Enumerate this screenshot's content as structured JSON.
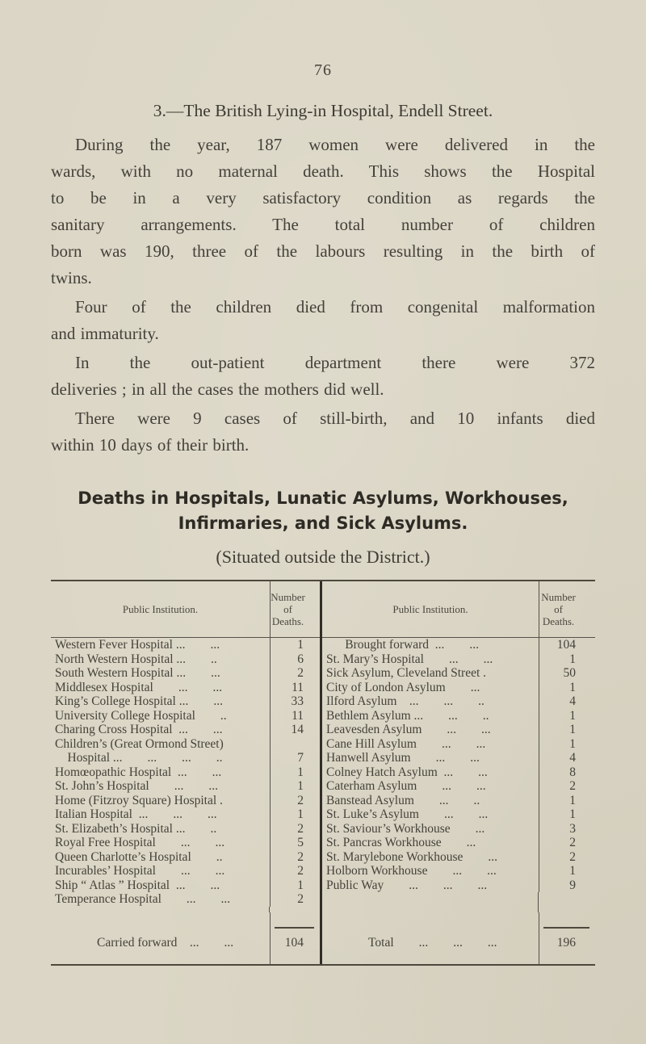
{
  "theme": {
    "paper": "#dbd6c5",
    "ink": "#413e36",
    "rule": "#4c483c",
    "divider": "#312e27"
  },
  "doc": {
    "page_number": "76",
    "section_heading": "3.—The British Lying-in Hospital, Endell Street.",
    "paragraphs": [
      [
        "During the year, 187 women were delivered in the",
        "wards, with no maternal death.  This shows the Hospital",
        "to be in a very satisfactory condition as regards the",
        "sanitary arrangements.  The total number of children",
        "born was 190, three of the labours resulting in the birth of",
        "twins."
      ],
      [
        "Four of the children died from congenital malformation",
        "and immaturity."
      ],
      [
        "In the out-patient department there were 372",
        "deliveries ; in all the cases the mothers did well."
      ],
      [
        "There were 9 cases of still-birth, and 10 infants died",
        "within 10 days of their birth."
      ]
    ],
    "deaths_heading": [
      "Deaths in Hospitals, Lunatic Asylums, Workhouses,",
      "Infirmaries, and Sick Asylums."
    ],
    "subtitle": "(Situated outside the District.)"
  },
  "table": {
    "institution_header": "Public Institution.",
    "deaths_header": "Number of Deaths.",
    "left_rows": [
      {
        "name": "Western Fever Hospital ...        ...",
        "value": "1"
      },
      {
        "name": "North Western Hospital ...        ..",
        "value": "6"
      },
      {
        "name": "South Western Hospital ...        ...",
        "value": "2"
      },
      {
        "name": "Middlesex Hospital        ...        ...",
        "value": "11"
      },
      {
        "name": "King’s College Hospital ...        ...",
        "value": "33"
      },
      {
        "name": "University College Hospital        ..",
        "value": "11"
      },
      {
        "name": "Charing Cross Hospital  ...        ...",
        "value": "14"
      },
      {
        "name": "Children’s (Great Ormond Street)",
        "value": ""
      },
      {
        "name": "    Hospital ...        ...        ...        ..",
        "value": "7"
      },
      {
        "name": "Homœopathic Hospital  ...        ...",
        "value": "1"
      },
      {
        "name": "St. John’s Hospital        ...        ...",
        "value": "1"
      },
      {
        "name": "Home (Fitzroy Square) Hospital .",
        "value": "2"
      },
      {
        "name": "Italian Hospital  ...        ...        ...",
        "value": "1"
      },
      {
        "name": "St. Elizabeth’s Hospital ...        ..",
        "value": "2"
      },
      {
        "name": "Royal Free Hospital        ...        ...",
        "value": "5"
      },
      {
        "name": "Queen Charlotte’s Hospital        ..",
        "value": "2"
      },
      {
        "name": "Incurables’ Hospital        ...        ...",
        "value": "2"
      },
      {
        "name": "Ship “ Atlas ” Hospital  ...        ...",
        "value": "1"
      },
      {
        "name": "Temperance Hospital        ...        ...",
        "value": "2"
      }
    ],
    "carried_forward": {
      "label": "Carried forward    ...        ...",
      "value": "104"
    },
    "right_rows": [
      {
        "name": "      Brought forward  ...        ...",
        "value": "104"
      },
      {
        "name": "St. Mary’s Hospital        ...        ...",
        "value": "1"
      },
      {
        "name": "Sick Asylum, Cleveland Street .",
        "value": "50"
      },
      {
        "name": "City of London Asylum        ...",
        "value": "1"
      },
      {
        "name": "Ilford Asylum    ...        ...        ..",
        "value": "4"
      },
      {
        "name": "Bethlem Asylum ...        ...        ..",
        "value": "1"
      },
      {
        "name": "Leavesden Asylum        ...        ...",
        "value": "1"
      },
      {
        "name": "Cane Hill Asylum        ...        ...",
        "value": "1"
      },
      {
        "name": "Hanwell Asylum        ...        ...",
        "value": "4"
      },
      {
        "name": "Colney Hatch Asylum  ...        ...",
        "value": "8"
      },
      {
        "name": "Caterham Asylum        ...        ...",
        "value": "2"
      },
      {
        "name": "Banstead Asylum        ...        ..",
        "value": "1"
      },
      {
        "name": "St. Luke’s Asylum        ...        ...",
        "value": "1"
      },
      {
        "name": "St. Saviour’s Workhouse        ...",
        "value": "3"
      },
      {
        "name": "St. Pancras Workhouse        ...",
        "value": "2"
      },
      {
        "name": "St. Marylebone Workhouse        ...",
        "value": "2"
      },
      {
        "name": "Holborn Workhouse        ...        ...",
        "value": "1"
      },
      {
        "name": "Public Way        ...        ...        ...",
        "value": "9"
      }
    ],
    "total": {
      "label": "Total        ...        ...        ...",
      "value": "196"
    }
  }
}
